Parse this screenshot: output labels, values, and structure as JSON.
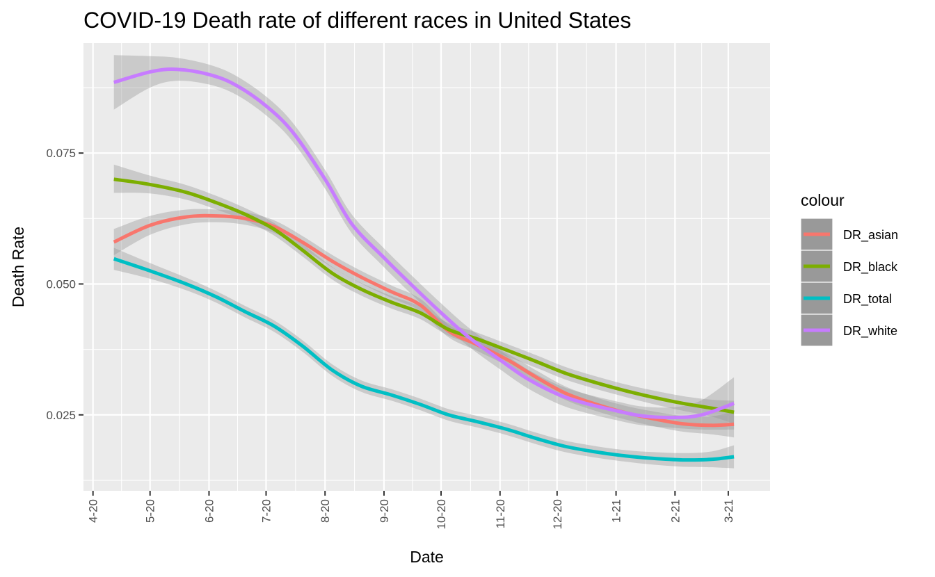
{
  "chart_data": {
    "type": "line",
    "title": "COVID-19 Death rate of different races in United States",
    "xlabel": "Date",
    "ylabel": "Death Rate",
    "x_axis": {
      "type": "date",
      "ticks": [
        {
          "date": "2020-04-01",
          "label": "4-20"
        },
        {
          "date": "2020-05-01",
          "label": "5-20"
        },
        {
          "date": "2020-06-01",
          "label": "6-20"
        },
        {
          "date": "2020-07-01",
          "label": "7-20"
        },
        {
          "date": "2020-08-01",
          "label": "8-20"
        },
        {
          "date": "2020-09-01",
          "label": "9-20"
        },
        {
          "date": "2020-10-01",
          "label": "10-20"
        },
        {
          "date": "2020-11-01",
          "label": "11-20"
        },
        {
          "date": "2020-12-01",
          "label": "12-20"
        },
        {
          "date": "2021-01-01",
          "label": "1-21"
        },
        {
          "date": "2021-02-01",
          "label": "2-21"
        },
        {
          "date": "2021-03-01",
          "label": "3-21"
        }
      ],
      "range": [
        "2020-03-27",
        "2021-03-23"
      ]
    },
    "y_axis": {
      "range": [
        0.0105,
        0.096
      ],
      "ticks": [
        {
          "value": 0.025,
          "label": "0.025"
        },
        {
          "value": 0.05,
          "label": "0.050"
        },
        {
          "value": 0.075,
          "label": "0.075"
        }
      ]
    },
    "grid": true,
    "legend": {
      "title": "colour",
      "position": "right"
    },
    "series": [
      {
        "name": "DR_asian",
        "color": "#F8766D",
        "points": [
          {
            "x": "2020-04-12",
            "y": 0.058,
            "lo": 0.0555,
            "hi": 0.0605
          },
          {
            "x": "2020-05-01",
            "y": 0.0612,
            "lo": 0.0594,
            "hi": 0.063
          },
          {
            "x": "2020-05-20",
            "y": 0.0628,
            "lo": 0.0614,
            "hi": 0.0642
          },
          {
            "x": "2020-06-05",
            "y": 0.063,
            "lo": 0.0618,
            "hi": 0.0642
          },
          {
            "x": "2020-06-20",
            "y": 0.0625,
            "lo": 0.0613,
            "hi": 0.0637
          },
          {
            "x": "2020-07-05",
            "y": 0.061,
            "lo": 0.0598,
            "hi": 0.0622
          },
          {
            "x": "2020-07-20",
            "y": 0.058,
            "lo": 0.0568,
            "hi": 0.0592
          },
          {
            "x": "2020-08-05",
            "y": 0.0543,
            "lo": 0.0531,
            "hi": 0.0555
          },
          {
            "x": "2020-08-20",
            "y": 0.0513,
            "lo": 0.0501,
            "hi": 0.0525
          },
          {
            "x": "2020-09-05",
            "y": 0.0485,
            "lo": 0.0473,
            "hi": 0.0497
          },
          {
            "x": "2020-09-20",
            "y": 0.046,
            "lo": 0.0448,
            "hi": 0.0472
          },
          {
            "x": "2020-10-05",
            "y": 0.041,
            "lo": 0.0398,
            "hi": 0.0422
          },
          {
            "x": "2020-10-20",
            "y": 0.0384,
            "lo": 0.0372,
            "hi": 0.0396
          },
          {
            "x": "2020-11-05",
            "y": 0.0355,
            "lo": 0.0343,
            "hi": 0.0367
          },
          {
            "x": "2020-11-20",
            "y": 0.0322,
            "lo": 0.0309,
            "hi": 0.0335
          },
          {
            "x": "2020-12-05",
            "y": 0.0292,
            "lo": 0.0279,
            "hi": 0.0305
          },
          {
            "x": "2020-12-20",
            "y": 0.0272,
            "lo": 0.0259,
            "hi": 0.0285
          },
          {
            "x": "2021-01-05",
            "y": 0.0255,
            "lo": 0.0242,
            "hi": 0.0268
          },
          {
            "x": "2021-01-20",
            "y": 0.0243,
            "lo": 0.0229,
            "hi": 0.0257
          },
          {
            "x": "2021-02-05",
            "y": 0.0233,
            "lo": 0.0218,
            "hi": 0.0248
          },
          {
            "x": "2021-02-20",
            "y": 0.023,
            "lo": 0.0213,
            "hi": 0.0247
          },
          {
            "x": "2021-03-04",
            "y": 0.0232,
            "lo": 0.0207,
            "hi": 0.0257
          }
        ]
      },
      {
        "name": "DR_black",
        "color": "#7CAE00",
        "points": [
          {
            "x": "2020-04-12",
            "y": 0.07,
            "lo": 0.0674,
            "hi": 0.0728
          },
          {
            "x": "2020-05-01",
            "y": 0.069,
            "lo": 0.0673,
            "hi": 0.0707
          },
          {
            "x": "2020-05-20",
            "y": 0.0675,
            "lo": 0.0661,
            "hi": 0.0689
          },
          {
            "x": "2020-06-05",
            "y": 0.0655,
            "lo": 0.0642,
            "hi": 0.0668
          },
          {
            "x": "2020-06-20",
            "y": 0.0633,
            "lo": 0.0621,
            "hi": 0.0645
          },
          {
            "x": "2020-07-05",
            "y": 0.0605,
            "lo": 0.0593,
            "hi": 0.0617
          },
          {
            "x": "2020-07-20",
            "y": 0.0565,
            "lo": 0.0553,
            "hi": 0.0577
          },
          {
            "x": "2020-08-05",
            "y": 0.052,
            "lo": 0.0508,
            "hi": 0.0532
          },
          {
            "x": "2020-08-20",
            "y": 0.049,
            "lo": 0.0478,
            "hi": 0.0502
          },
          {
            "x": "2020-09-05",
            "y": 0.0465,
            "lo": 0.0453,
            "hi": 0.0477
          },
          {
            "x": "2020-09-20",
            "y": 0.0445,
            "lo": 0.0433,
            "hi": 0.0457
          },
          {
            "x": "2020-10-05",
            "y": 0.0413,
            "lo": 0.0401,
            "hi": 0.0425
          },
          {
            "x": "2020-10-20",
            "y": 0.0395,
            "lo": 0.0383,
            "hi": 0.0407
          },
          {
            "x": "2020-11-05",
            "y": 0.0373,
            "lo": 0.0361,
            "hi": 0.0385
          },
          {
            "x": "2020-11-20",
            "y": 0.0352,
            "lo": 0.034,
            "hi": 0.0364
          },
          {
            "x": "2020-12-05",
            "y": 0.033,
            "lo": 0.0318,
            "hi": 0.0342
          },
          {
            "x": "2020-12-20",
            "y": 0.0313,
            "lo": 0.0301,
            "hi": 0.0325
          },
          {
            "x": "2021-01-05",
            "y": 0.0297,
            "lo": 0.0285,
            "hi": 0.0309
          },
          {
            "x": "2021-01-20",
            "y": 0.0284,
            "lo": 0.0271,
            "hi": 0.0297
          },
          {
            "x": "2021-02-05",
            "y": 0.0272,
            "lo": 0.0258,
            "hi": 0.0286
          },
          {
            "x": "2021-02-20",
            "y": 0.0263,
            "lo": 0.0247,
            "hi": 0.0279
          },
          {
            "x": "2021-03-04",
            "y": 0.0255,
            "lo": 0.0233,
            "hi": 0.0277
          }
        ]
      },
      {
        "name": "DR_total",
        "color": "#00BFC4",
        "points": [
          {
            "x": "2020-04-12",
            "y": 0.0548,
            "lo": 0.0527,
            "hi": 0.0569
          },
          {
            "x": "2020-05-01",
            "y": 0.0525,
            "lo": 0.051,
            "hi": 0.054
          },
          {
            "x": "2020-05-20",
            "y": 0.05,
            "lo": 0.0488,
            "hi": 0.0512
          },
          {
            "x": "2020-06-05",
            "y": 0.0475,
            "lo": 0.0464,
            "hi": 0.0486
          },
          {
            "x": "2020-06-20",
            "y": 0.0447,
            "lo": 0.0436,
            "hi": 0.0458
          },
          {
            "x": "2020-07-05",
            "y": 0.042,
            "lo": 0.0409,
            "hi": 0.0431
          },
          {
            "x": "2020-07-20",
            "y": 0.0382,
            "lo": 0.0371,
            "hi": 0.0393
          },
          {
            "x": "2020-08-05",
            "y": 0.0335,
            "lo": 0.0324,
            "hi": 0.0346
          },
          {
            "x": "2020-08-20",
            "y": 0.0305,
            "lo": 0.0294,
            "hi": 0.0316
          },
          {
            "x": "2020-09-05",
            "y": 0.0288,
            "lo": 0.0277,
            "hi": 0.0299
          },
          {
            "x": "2020-09-20",
            "y": 0.027,
            "lo": 0.0259,
            "hi": 0.0281
          },
          {
            "x": "2020-10-05",
            "y": 0.025,
            "lo": 0.0239,
            "hi": 0.0261
          },
          {
            "x": "2020-10-20",
            "y": 0.0237,
            "lo": 0.0226,
            "hi": 0.0248
          },
          {
            "x": "2020-11-05",
            "y": 0.0222,
            "lo": 0.0211,
            "hi": 0.0233
          },
          {
            "x": "2020-11-20",
            "y": 0.0205,
            "lo": 0.0194,
            "hi": 0.0216
          },
          {
            "x": "2020-12-05",
            "y": 0.019,
            "lo": 0.0179,
            "hi": 0.0201
          },
          {
            "x": "2020-12-20",
            "y": 0.018,
            "lo": 0.0169,
            "hi": 0.0191
          },
          {
            "x": "2021-01-05",
            "y": 0.0172,
            "lo": 0.0161,
            "hi": 0.0183
          },
          {
            "x": "2021-01-20",
            "y": 0.0167,
            "lo": 0.0155,
            "hi": 0.0179
          },
          {
            "x": "2021-02-05",
            "y": 0.0164,
            "lo": 0.0151,
            "hi": 0.0177
          },
          {
            "x": "2021-02-20",
            "y": 0.0165,
            "lo": 0.015,
            "hi": 0.018
          },
          {
            "x": "2021-03-04",
            "y": 0.017,
            "lo": 0.0148,
            "hi": 0.0192
          }
        ]
      },
      {
        "name": "DR_white",
        "color": "#C77CFF",
        "points": [
          {
            "x": "2020-04-12",
            "y": 0.0885,
            "lo": 0.0833,
            "hi": 0.0937
          },
          {
            "x": "2020-05-01",
            "y": 0.0905,
            "lo": 0.0875,
            "hi": 0.0935
          },
          {
            "x": "2020-05-15",
            "y": 0.091,
            "lo": 0.0888,
            "hi": 0.0932
          },
          {
            "x": "2020-06-01",
            "y": 0.09,
            "lo": 0.0881,
            "hi": 0.0919
          },
          {
            "x": "2020-06-15",
            "y": 0.088,
            "lo": 0.0862,
            "hi": 0.0898
          },
          {
            "x": "2020-07-01",
            "y": 0.084,
            "lo": 0.0822,
            "hi": 0.0858
          },
          {
            "x": "2020-07-15",
            "y": 0.079,
            "lo": 0.0772,
            "hi": 0.0808
          },
          {
            "x": "2020-08-01",
            "y": 0.07,
            "lo": 0.0682,
            "hi": 0.0718
          },
          {
            "x": "2020-08-15",
            "y": 0.0615,
            "lo": 0.0597,
            "hi": 0.0633
          },
          {
            "x": "2020-09-01",
            "y": 0.055,
            "lo": 0.0532,
            "hi": 0.0568
          },
          {
            "x": "2020-09-15",
            "y": 0.05,
            "lo": 0.0482,
            "hi": 0.0518
          },
          {
            "x": "2020-10-01",
            "y": 0.0445,
            "lo": 0.0427,
            "hi": 0.0463
          },
          {
            "x": "2020-10-15",
            "y": 0.04,
            "lo": 0.0382,
            "hi": 0.0418
          },
          {
            "x": "2020-11-01",
            "y": 0.0355,
            "lo": 0.0337,
            "hi": 0.0373
          },
          {
            "x": "2020-11-15",
            "y": 0.032,
            "lo": 0.0302,
            "hi": 0.0338
          },
          {
            "x": "2020-12-01",
            "y": 0.029,
            "lo": 0.0272,
            "hi": 0.0308
          },
          {
            "x": "2020-12-15",
            "y": 0.0273,
            "lo": 0.0255,
            "hi": 0.0291
          },
          {
            "x": "2021-01-01",
            "y": 0.0258,
            "lo": 0.024,
            "hi": 0.0276
          },
          {
            "x": "2021-01-15",
            "y": 0.0248,
            "lo": 0.023,
            "hi": 0.0266
          },
          {
            "x": "2021-02-01",
            "y": 0.0245,
            "lo": 0.0225,
            "hi": 0.0265
          },
          {
            "x": "2021-02-15",
            "y": 0.025,
            "lo": 0.0222,
            "hi": 0.0278
          },
          {
            "x": "2021-03-04",
            "y": 0.0272,
            "lo": 0.0222,
            "hi": 0.0322
          }
        ]
      }
    ]
  }
}
